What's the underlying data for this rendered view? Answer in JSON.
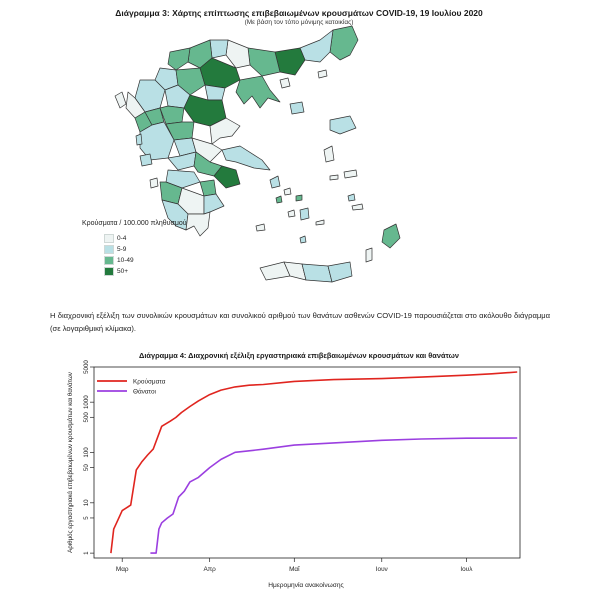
{
  "map": {
    "title": "Διάγραμμα 3: Χάρτης επίπτωσης επιβεβαιωμένων κρουσμάτων COVID-19, 19 Ιουλίου 2020",
    "subtitle": "(Με βάση τον τόπο μόνιμης κατοικίας)",
    "legend_title": "Κρούσματα / 100.000 πληθυσμού",
    "legend": [
      {
        "label": "0-4",
        "color": "#eef4f3"
      },
      {
        "label": "5-9",
        "color": "#b9e0e5"
      },
      {
        "label": "10-49",
        "color": "#66b88f"
      },
      {
        "label": "50+",
        "color": "#237a3d"
      }
    ]
  },
  "paragraph": "Η διαχρονική εξέλιξη των συνολικών κρουσμάτων και συνολικού αριθμού των θανάτων ασθενών COVID-19 παρουσιάζεται στο ακόλουθο διάγραμμα (σε λογαριθμική κλίμακα).",
  "chart_data": {
    "type": "line",
    "title": "Διάγραμμα 4: Διαχρονική εξέλιξη εργαστηριακά επιβεβαιωμένων κρουσμάτων και θανάτων",
    "xlabel": "Ημερομηνία ανακοίνωσης",
    "ylabel": "Αριθμός εργαστηριακά επιβεβαιωμένων κρουσμάτων και θανάτων",
    "y_scale": "log",
    "ylim": [
      0.8,
      5000
    ],
    "y_ticks": [
      1,
      5,
      10,
      50,
      100,
      500,
      1000,
      5000
    ],
    "x_ticks": [
      "Μαρ",
      "Απρ",
      "Μαΐ",
      "Ιουν",
      "Ιουλ"
    ],
    "x_range": [
      "2020-02-20",
      "2020-07-20"
    ],
    "grid": false,
    "legend_position": "top-left",
    "series": [
      {
        "name": "Κρούσματα",
        "color": "#e0251f",
        "points": [
          [
            "2020-02-26",
            1
          ],
          [
            "2020-02-27",
            3
          ],
          [
            "2020-02-28",
            4
          ],
          [
            "2020-03-01",
            7
          ],
          [
            "2020-03-04",
            9
          ],
          [
            "2020-03-06",
            45
          ],
          [
            "2020-03-08",
            66
          ],
          [
            "2020-03-10",
            89
          ],
          [
            "2020-03-12",
            117
          ],
          [
            "2020-03-15",
            331
          ],
          [
            "2020-03-18",
            418
          ],
          [
            "2020-03-20",
            495
          ],
          [
            "2020-03-22",
            624
          ],
          [
            "2020-03-25",
            821
          ],
          [
            "2020-03-28",
            1061
          ],
          [
            "2020-04-01",
            1415
          ],
          [
            "2020-04-05",
            1735
          ],
          [
            "2020-04-10",
            2011
          ],
          [
            "2020-04-15",
            2170
          ],
          [
            "2020-04-20",
            2245
          ],
          [
            "2020-05-01",
            2591
          ],
          [
            "2020-05-15",
            2810
          ],
          [
            "2020-06-01",
            2937
          ],
          [
            "2020-06-15",
            3148
          ],
          [
            "2020-07-01",
            3432
          ],
          [
            "2020-07-10",
            3662
          ],
          [
            "2020-07-19",
            3983
          ]
        ]
      },
      {
        "name": "Θάνατοι",
        "color": "#9b3fe0",
        "points": [
          [
            "2020-03-11",
            1
          ],
          [
            "2020-03-13",
            1
          ],
          [
            "2020-03-14",
            3
          ],
          [
            "2020-03-15",
            4
          ],
          [
            "2020-03-17",
            5
          ],
          [
            "2020-03-19",
            6
          ],
          [
            "2020-03-21",
            13
          ],
          [
            "2020-03-23",
            17
          ],
          [
            "2020-03-25",
            26
          ],
          [
            "2020-03-28",
            32
          ],
          [
            "2020-04-01",
            50
          ],
          [
            "2020-04-05",
            73
          ],
          [
            "2020-04-10",
            101
          ],
          [
            "2020-04-15",
            108
          ],
          [
            "2020-04-20",
            116
          ],
          [
            "2020-05-01",
            140
          ],
          [
            "2020-05-15",
            155
          ],
          [
            "2020-06-01",
            175
          ],
          [
            "2020-06-15",
            185
          ],
          [
            "2020-07-01",
            192
          ],
          [
            "2020-07-19",
            194
          ]
        ]
      }
    ]
  }
}
